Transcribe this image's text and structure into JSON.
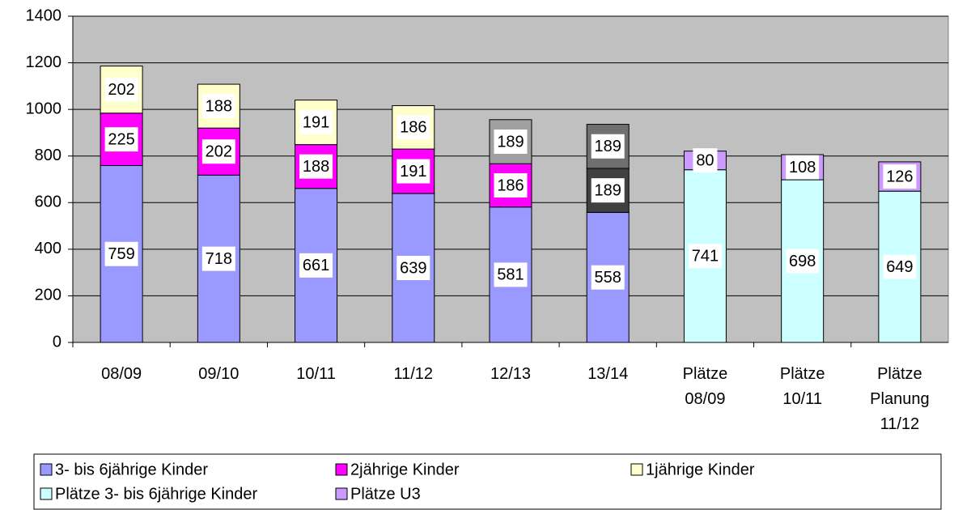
{
  "chart_data": {
    "type": "stacked_bar",
    "categories": [
      "08/09",
      "09/10",
      "10/11",
      "11/12",
      "12/13",
      "13/14",
      "Plätze\n08/09",
      "Plätze\n10/11",
      "Plätze\nPlanung\n11/12"
    ],
    "series": [
      {
        "name": "3- bis 6jährige Kinder",
        "color": "#9999ff",
        "values": [
          759,
          718,
          661,
          639,
          581,
          558,
          null,
          null,
          null
        ]
      },
      {
        "name": "2jährige Kinder",
        "color": "#ff00ff",
        "colors": [
          "#ff00ff",
          "#ff00ff",
          "#ff00ff",
          "#ff00ff",
          "#ff00ff",
          "#404040",
          null,
          null,
          null
        ],
        "values": [
          225,
          202,
          188,
          191,
          186,
          189,
          null,
          null,
          null
        ]
      },
      {
        "name": "1jährige Kinder",
        "color": "#ffffcc",
        "colors": [
          "#ffffcc",
          "#ffffcc",
          "#ffffcc",
          "#ffffcc",
          "#a0a0a0",
          "#707070",
          null,
          null,
          null
        ],
        "values": [
          202,
          188,
          191,
          186,
          189,
          189,
          null,
          null,
          null
        ]
      },
      {
        "name": "Plätze 3- bis 6jährige Kinder",
        "color": "#ccffff",
        "values": [
          null,
          null,
          null,
          null,
          null,
          null,
          741,
          698,
          649
        ]
      },
      {
        "name": "Plätze U3",
        "color": "#cc99ff",
        "values": [
          null,
          null,
          null,
          null,
          null,
          null,
          80,
          108,
          126
        ]
      }
    ],
    "ylim": [
      0,
      1400
    ],
    "yticks": [
      0,
      200,
      400,
      600,
      800,
      1000,
      1200,
      1400
    ],
    "grid": true,
    "legend": "bottom"
  }
}
